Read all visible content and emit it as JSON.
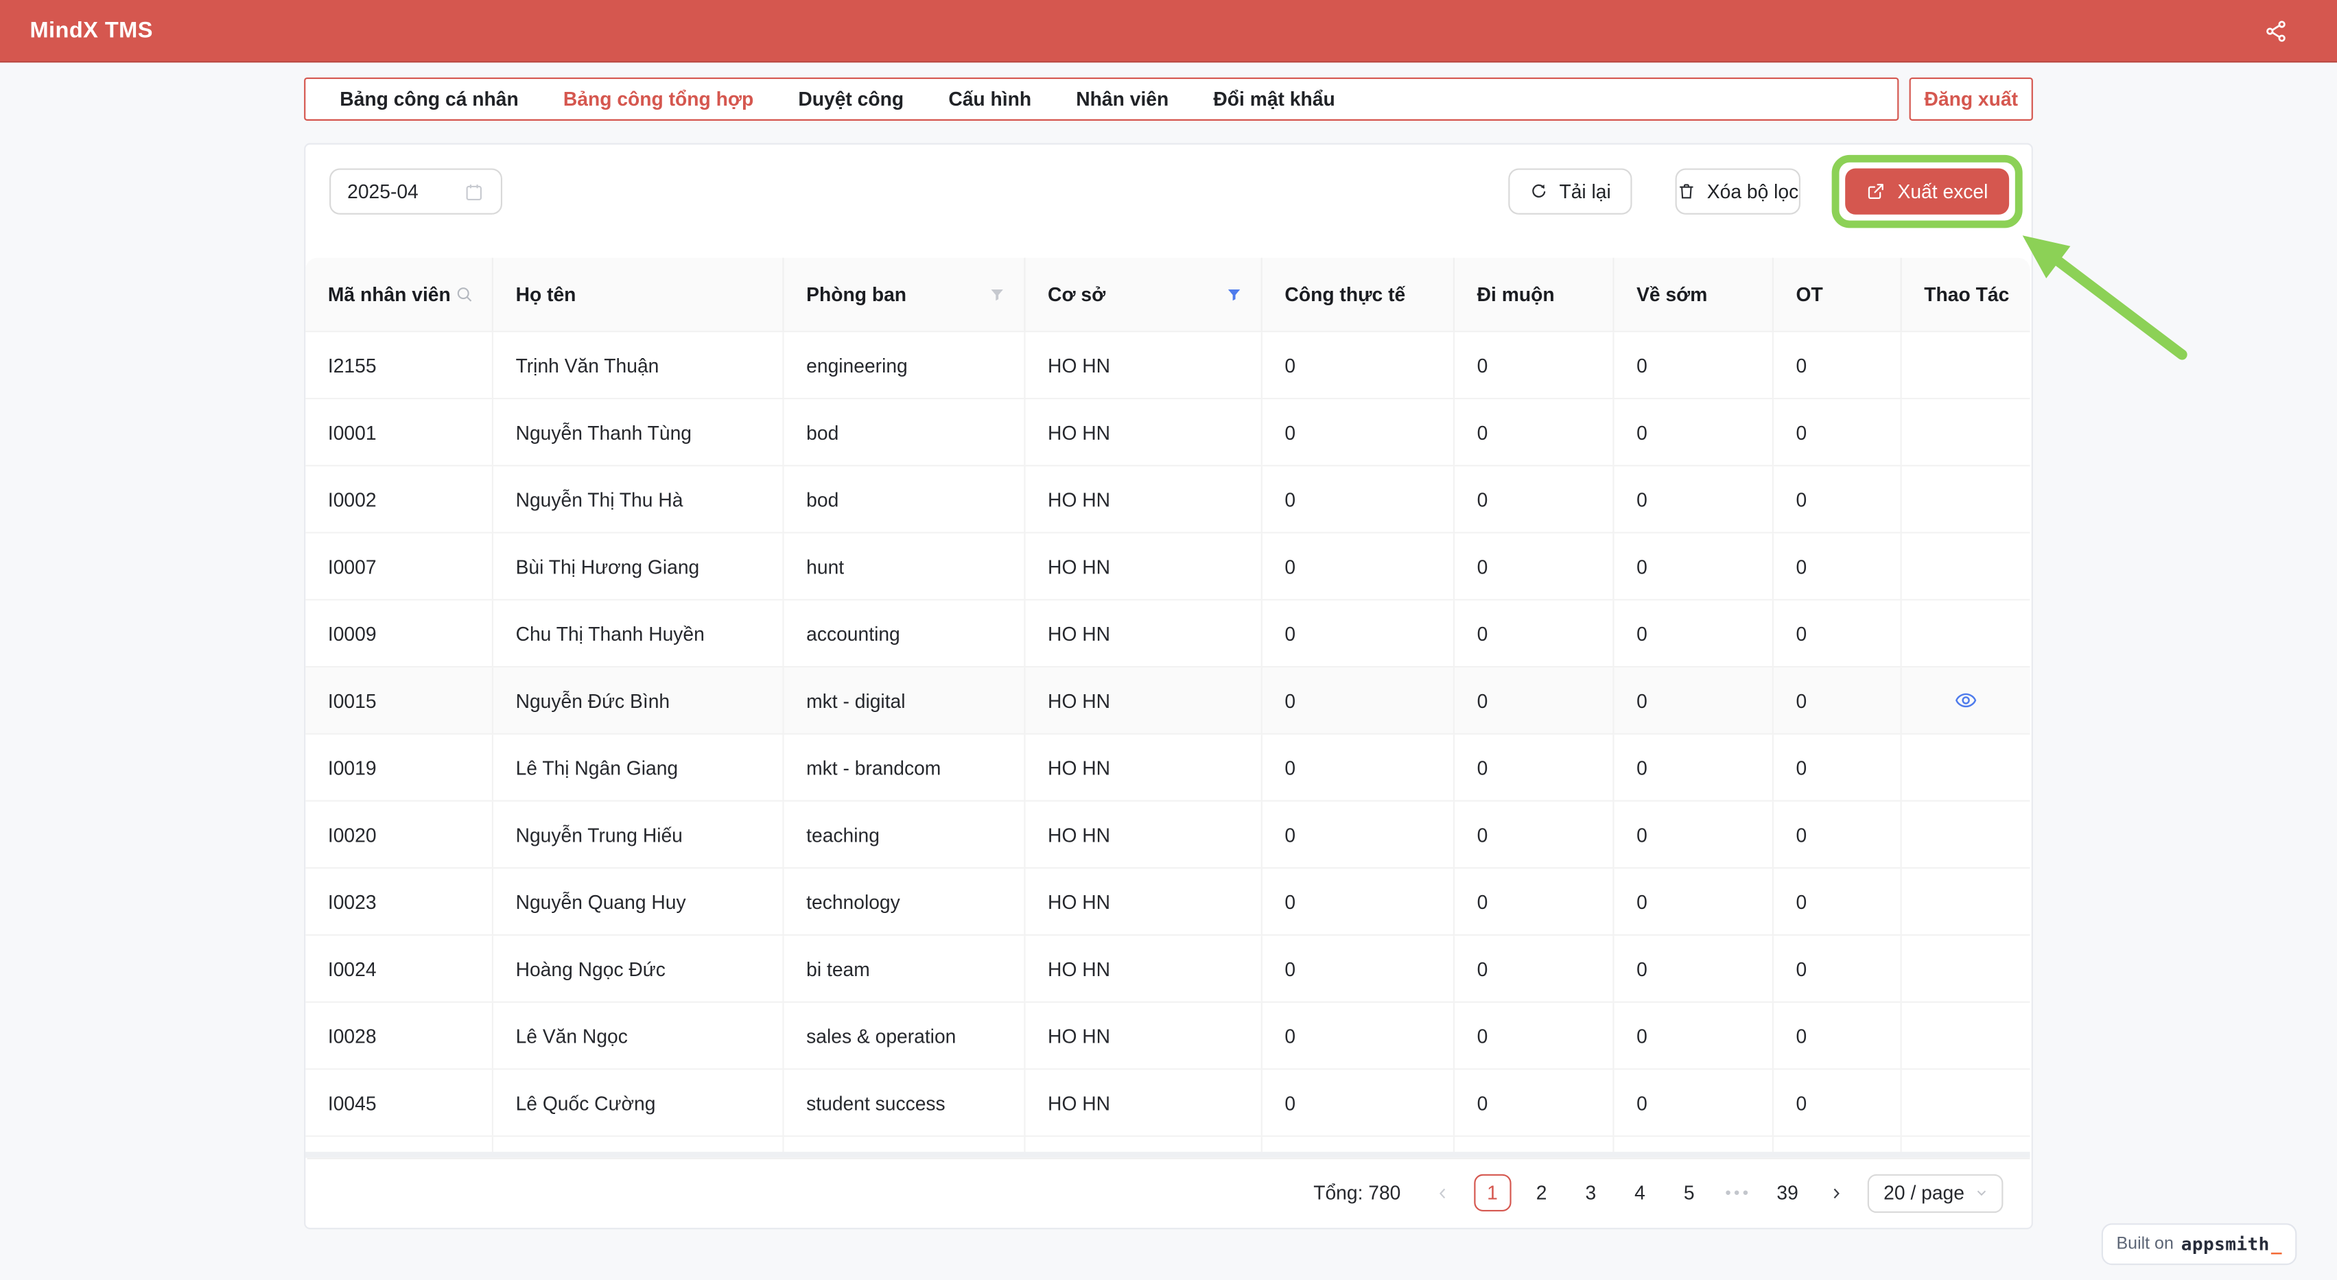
{
  "colors": {
    "primary_red": "#d5574f",
    "highlight_green": "#8cd156",
    "link_blue": "#4e7bec",
    "accent_orange": "#f3652f"
  },
  "header": {
    "title": "MindX TMS"
  },
  "tabs": {
    "items": [
      {
        "label": "Bảng công cá nhân",
        "active": false
      },
      {
        "label": "Bảng công tổng hợp",
        "active": true
      },
      {
        "label": "Duyệt công",
        "active": false
      },
      {
        "label": "Cấu hình",
        "active": false
      },
      {
        "label": "Nhân viên",
        "active": false
      },
      {
        "label": "Đổi mật khẩu",
        "active": false
      }
    ],
    "logout_label": "Đăng xuất"
  },
  "filters": {
    "month_value": "2025-04",
    "reload_label": "Tải lại",
    "clear_label": "Xóa bộ lọc",
    "export_label": "Xuất excel"
  },
  "table": {
    "columns": [
      {
        "label": "Mã nhân viên",
        "icon": "search"
      },
      {
        "label": "Họ tên",
        "icon": null
      },
      {
        "label": "Phòng ban",
        "icon": "filter"
      },
      {
        "label": "Cơ sở",
        "icon": "filter-active"
      },
      {
        "label": "Công thực tế",
        "icon": null
      },
      {
        "label": "Đi muộn",
        "icon": null
      },
      {
        "label": "Về sớm",
        "icon": null
      },
      {
        "label": "OT",
        "icon": null
      },
      {
        "label": "Thao Tác",
        "icon": null
      }
    ],
    "rows": [
      {
        "code": "I2155",
        "name": "Trịnh Văn Thuận",
        "dept": "engineering",
        "site": "HO HN",
        "actual": "0",
        "late": "0",
        "early": "0",
        "ot": "0",
        "action": "",
        "highlight": false
      },
      {
        "code": "I0001",
        "name": "Nguyễn Thanh Tùng",
        "dept": "bod",
        "site": "HO HN",
        "actual": "0",
        "late": "0",
        "early": "0",
        "ot": "0",
        "action": "",
        "highlight": false
      },
      {
        "code": "I0002",
        "name": "Nguyễn Thị Thu Hà",
        "dept": "bod",
        "site": "HO HN",
        "actual": "0",
        "late": "0",
        "early": "0",
        "ot": "0",
        "action": "",
        "highlight": false
      },
      {
        "code": "I0007",
        "name": "Bùi Thị Hương Giang",
        "dept": "hunt",
        "site": "HO HN",
        "actual": "0",
        "late": "0",
        "early": "0",
        "ot": "0",
        "action": "",
        "highlight": false
      },
      {
        "code": "I0009",
        "name": "Chu Thị Thanh Huyền",
        "dept": "accounting",
        "site": "HO HN",
        "actual": "0",
        "late": "0",
        "early": "0",
        "ot": "0",
        "action": "",
        "highlight": false
      },
      {
        "code": "I0015",
        "name": "Nguyễn Đức Bình",
        "dept": "mkt - digital",
        "site": "HO HN",
        "actual": "0",
        "late": "0",
        "early": "0",
        "ot": "0",
        "action": "eye",
        "highlight": true
      },
      {
        "code": "I0019",
        "name": "Lê Thị Ngân Giang",
        "dept": "mkt - brandcom",
        "site": "HO HN",
        "actual": "0",
        "late": "0",
        "early": "0",
        "ot": "0",
        "action": "",
        "highlight": false
      },
      {
        "code": "I0020",
        "name": "Nguyễn Trung Hiếu",
        "dept": "teaching",
        "site": "HO HN",
        "actual": "0",
        "late": "0",
        "early": "0",
        "ot": "0",
        "action": "",
        "highlight": false
      },
      {
        "code": "I0023",
        "name": "Nguyễn Quang Huy",
        "dept": "technology",
        "site": "HO HN",
        "actual": "0",
        "late": "0",
        "early": "0",
        "ot": "0",
        "action": "",
        "highlight": false
      },
      {
        "code": "I0024",
        "name": "Hoàng Ngọc Đức",
        "dept": "bi team",
        "site": "HO HN",
        "actual": "0",
        "late": "0",
        "early": "0",
        "ot": "0",
        "action": "",
        "highlight": false
      },
      {
        "code": "I0028",
        "name": "Lê Văn Ngọc",
        "dept": "sales & operation",
        "site": "HO HN",
        "actual": "0",
        "late": "0",
        "early": "0",
        "ot": "0",
        "action": "",
        "highlight": false
      },
      {
        "code": "I0045",
        "name": "Lê Quốc Cường",
        "dept": "student success",
        "site": "HO HN",
        "actual": "0",
        "late": "0",
        "early": "0",
        "ot": "0",
        "action": "",
        "highlight": false
      }
    ]
  },
  "pagination": {
    "total_text": "Tổng: 780",
    "pages": [
      {
        "label": "1",
        "active": true
      },
      {
        "label": "2",
        "active": false
      },
      {
        "label": "3",
        "active": false
      },
      {
        "label": "4",
        "active": false
      },
      {
        "label": "5",
        "active": false
      },
      {
        "label": "•••",
        "active": false,
        "ellipsis": true
      },
      {
        "label": "39",
        "active": false
      }
    ],
    "page_size_label": "20 / page"
  },
  "badge": {
    "prefix": "Built on",
    "brand": "appsmith",
    "cursor": "_"
  }
}
